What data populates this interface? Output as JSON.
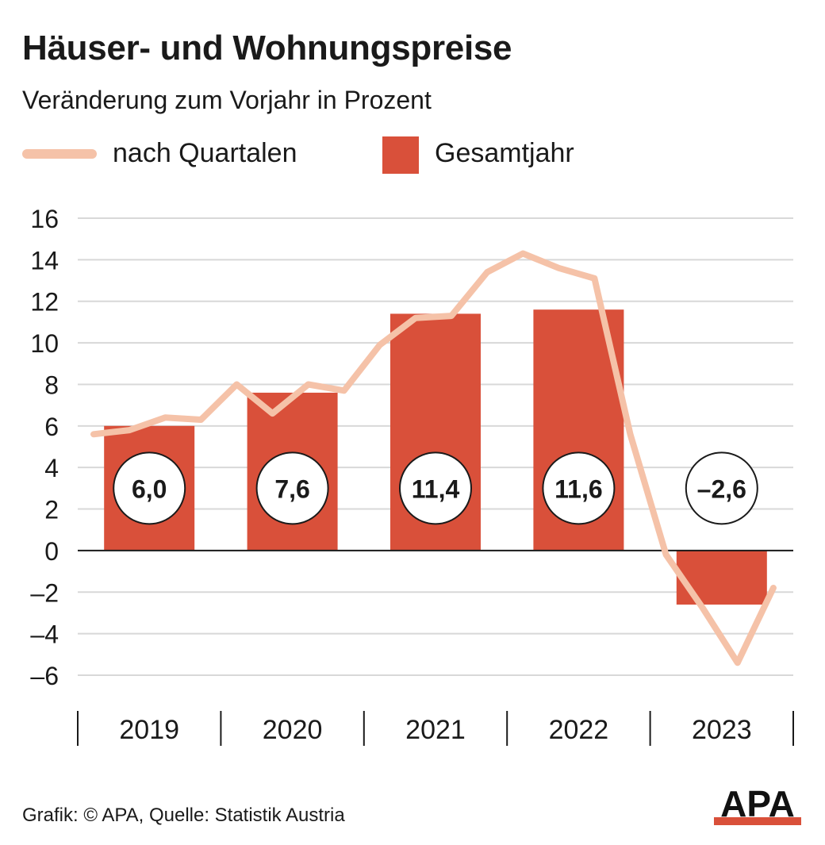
{
  "title": "Häuser- und Wohnungspreise",
  "subtitle": "Veränderung zum Vorjahr in Prozent",
  "legend": {
    "line_label": "nach Quartalen",
    "bar_label": "Gesamtjahr"
  },
  "colors": {
    "bar": "#d9503a",
    "line": "#f5c2a8",
    "grid": "#d8d8d8",
    "axis": "#1a1a1a"
  },
  "chart_data": {
    "type": "bar",
    "categories": [
      "2019",
      "2020",
      "2021",
      "2022",
      "2023"
    ],
    "ylim": [
      -6,
      16
    ],
    "yticks": [
      16,
      14,
      12,
      10,
      8,
      6,
      4,
      2,
      0,
      -2,
      -4,
      -6
    ],
    "ytick_labels": [
      "16",
      "14",
      "12",
      "10",
      "8",
      "6",
      "4",
      "2",
      "0",
      "–2",
      "–4",
      "–6"
    ],
    "grid": true,
    "series": [
      {
        "name": "Gesamtjahr",
        "type": "bar",
        "values": [
          6.0,
          7.6,
          11.4,
          11.6,
          -2.6
        ],
        "labels": [
          "6,0",
          "7,6",
          "11,4",
          "11,6",
          "–2,6"
        ]
      },
      {
        "name": "nach Quartalen",
        "type": "line",
        "x": [
          "2019-Q1",
          "2019-Q2",
          "2019-Q3",
          "2019-Q4",
          "2020-Q1",
          "2020-Q2",
          "2020-Q3",
          "2020-Q4",
          "2021-Q1",
          "2021-Q2",
          "2021-Q3",
          "2021-Q4",
          "2022-Q1",
          "2022-Q2",
          "2022-Q3",
          "2022-Q4",
          "2023-Q1",
          "2023-Q2",
          "2023-Q3",
          "2023-Q4"
        ],
        "values": [
          5.6,
          5.8,
          6.4,
          6.3,
          8.0,
          6.6,
          8.0,
          7.7,
          9.9,
          11.2,
          11.3,
          13.4,
          14.3,
          13.6,
          13.1,
          5.6,
          -0.2,
          -2.7,
          -5.4,
          -1.8
        ]
      }
    ]
  },
  "footer": "Grafik: © APA, Quelle: Statistik Austria",
  "logo_text": "APA"
}
